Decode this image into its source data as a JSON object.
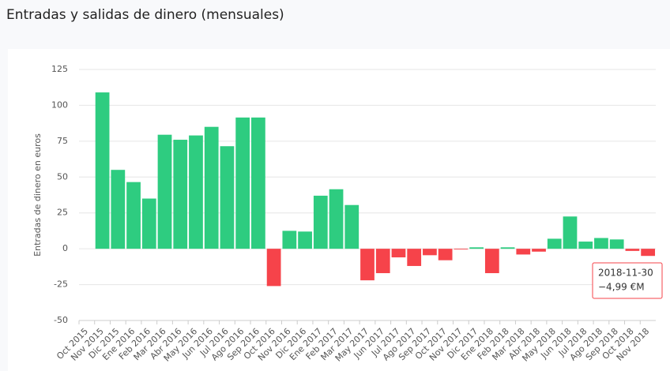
{
  "chart_data": {
    "type": "bar",
    "title": "Entradas y salidas de dinero (mensuales)",
    "y_label": "Entradas de dinero en euros",
    "categories": [
      "Oct 2015",
      "Nov 2015",
      "Dic 2015",
      "Ene 2016",
      "Feb 2016",
      "Mar 2016",
      "Abr 2016",
      "May 2016",
      "Jun 2016",
      "Jul 2016",
      "Ago 2016",
      "Sep 2016",
      "Oct 2016",
      "Nov 2016",
      "Dic 2016",
      "Ene 2017",
      "Feb 2017",
      "Mar 2017",
      "May 2017",
      "Jun 2017",
      "Jul 2017",
      "Ago 2017",
      "Sep 2017",
      "Oct 2017",
      "Nov 2017",
      "Dic 2017",
      "Ene 2018",
      "Feb 2018",
      "Mar 2018",
      "Abr 2018",
      "May 2018",
      "Jun 2018",
      "Jul 2018",
      "Ago 2018",
      "Sep 2018",
      "Oct 2018",
      "Nov 2018"
    ],
    "values": [
      null,
      109,
      55,
      46.5,
      35,
      79.5,
      76,
      79,
      85,
      71.5,
      91.5,
      91.5,
      -26,
      12.5,
      12,
      37,
      41.5,
      30.5,
      -22,
      -17,
      -6,
      -12,
      -4.5,
      -8,
      -0.5,
      1,
      -17,
      1,
      -4,
      -2,
      7,
      22.5,
      5,
      7.5,
      6.5,
      -1.5,
      -4.99
    ],
    "positive_color": "#2ecc80",
    "negative_color": "#f6434a",
    "ylim": [
      -50,
      125
    ],
    "yticks": [
      -50,
      -25,
      0,
      25,
      50,
      75,
      100,
      125
    ],
    "grid": true,
    "tooltip": {
      "date": "2018-11-30",
      "value": "−4,99 €M"
    }
  }
}
